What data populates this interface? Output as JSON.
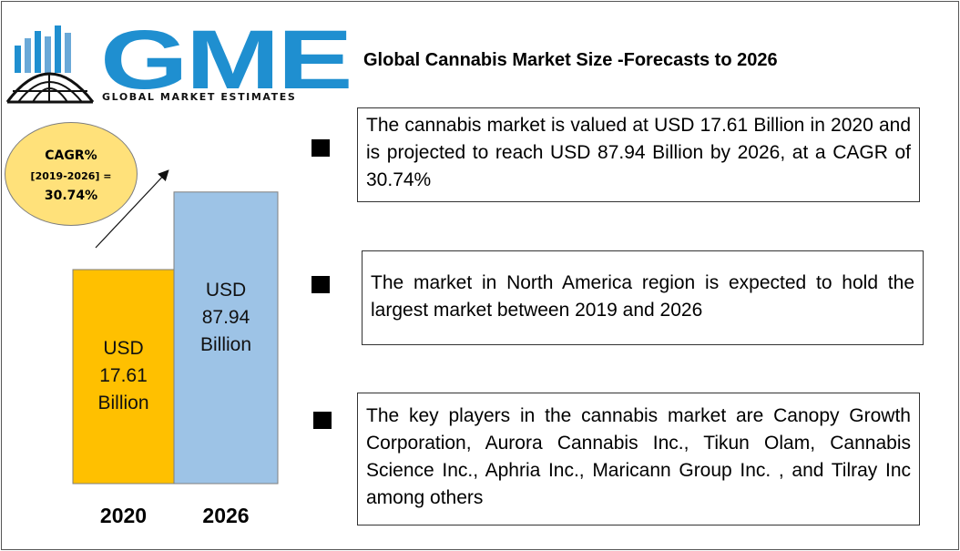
{
  "logo": {
    "letters": "GME",
    "tagline": "GLOBAL MARKET ESTIMATES",
    "icon": "globe-with-bars-icon",
    "color": "#1f8fd0"
  },
  "title": "Global Cannabis Market Size -Forecasts to 2026",
  "cagr": {
    "line1": "CAGR%",
    "line2": "[2019-2026] =",
    "line3": "30.74%",
    "color": "#ffe17a"
  },
  "chart_data": {
    "type": "bar",
    "categories": [
      "2020",
      "2026"
    ],
    "values": [
      17.61,
      87.94
    ],
    "unit": "Billion",
    "ylim": [
      0,
      103
    ],
    "bar_labels": [
      [
        "USD",
        "17.61",
        "Billion"
      ],
      [
        "USD",
        "87.94",
        "Billion"
      ]
    ],
    "colors": [
      "#ffc000",
      "#9dc3e6"
    ],
    "grid": false,
    "legend": "none",
    "annotation": "arrow"
  },
  "bullets": [
    "The cannabis market is valued at USD 17.61 Billion in 2020 and is projected to reach USD 87.94 Billion by 2026, at a CAGR of 30.74%",
    "The market in North America region is expected to hold the largest market between 2019 and 2026",
    "The key players in the cannabis market are   Canopy Growth Corporation, Aurora Cannabis Inc., Tikun Olam, Cannabis Science Inc., Aphria Inc., Maricann Group Inc. , and Tilray Inc among others"
  ]
}
